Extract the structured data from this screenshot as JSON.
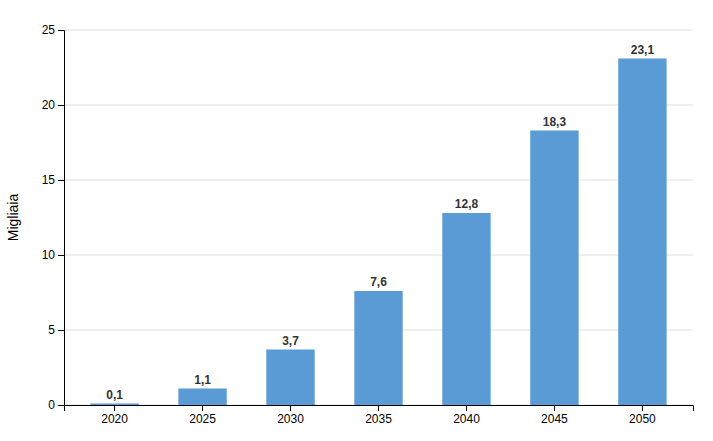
{
  "chart_data": {
    "type": "bar",
    "categories": [
      "2020",
      "2025",
      "2030",
      "2035",
      "2040",
      "2045",
      "2050"
    ],
    "values": [
      0.1,
      1.1,
      3.7,
      7.6,
      12.8,
      18.3,
      23.1
    ],
    "value_labels": [
      "0,1",
      "1,1",
      "3,7",
      "7,6",
      "12,8",
      "18,3",
      "23,1"
    ],
    "data_labels": true,
    "color": "#5b9bd5",
    "ylabel": "Migliaia",
    "ylim": [
      0,
      25
    ],
    "yticks": [
      0,
      5,
      10,
      15,
      20,
      25
    ],
    "grid": true
  }
}
